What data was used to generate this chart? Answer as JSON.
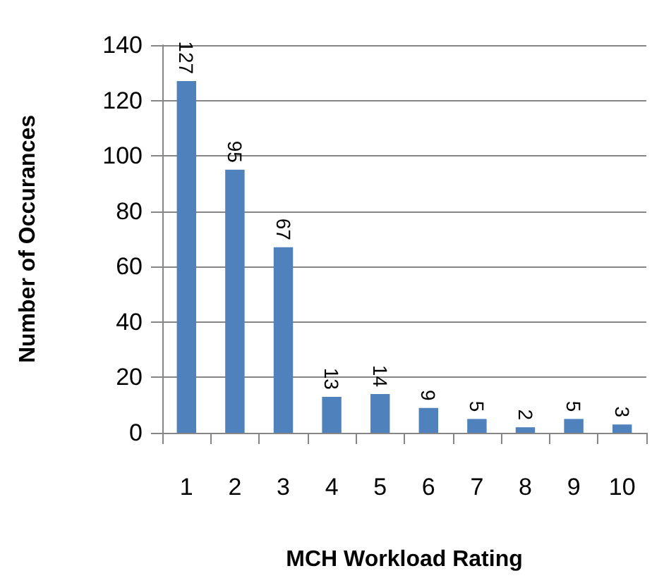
{
  "chart_data": {
    "type": "bar",
    "xlabel": "MCH Workload Rating",
    "ylabel": "Number of Occurances",
    "categories": [
      "1",
      "2",
      "3",
      "4",
      "5",
      "6",
      "7",
      "8",
      "9",
      "10"
    ],
    "values": [
      127,
      95,
      67,
      13,
      14,
      9,
      5,
      2,
      5,
      3
    ],
    "color": "#4f81bd",
    "ylim": [
      0,
      140
    ],
    "yticks": [
      0,
      20,
      40,
      60,
      80,
      100,
      120,
      140
    ],
    "grid": "y",
    "data_labels": true
  }
}
